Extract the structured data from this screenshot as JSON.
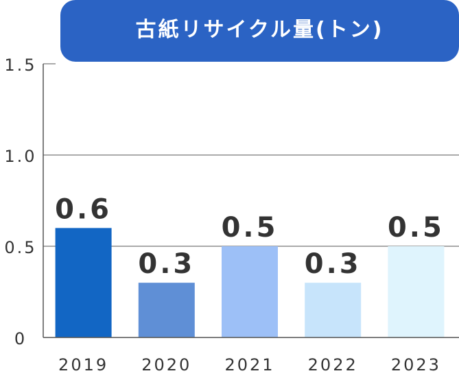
{
  "chart_data": {
    "type": "bar",
    "title": "古紙リサイクル量(トン)",
    "categories": [
      "2019",
      "2020",
      "2021",
      "2022",
      "2023"
    ],
    "values": [
      0.6,
      0.3,
      0.5,
      0.3,
      0.5
    ],
    "value_labels": [
      "0.6",
      "0.3",
      "0.5",
      "0.3",
      "0.5"
    ],
    "ylim": [
      0,
      1.5
    ],
    "yticks": [
      0,
      0.5,
      1.0,
      1.5
    ],
    "ytick_labels": [
      "0",
      "0.5",
      "1.0",
      "1.5"
    ],
    "xlabel": "",
    "ylabel": "",
    "grid": true,
    "bar_colors": [
      "#1266c4",
      "#5f8fd6",
      "#9dc0f7",
      "#c7e4fb",
      "#dff4fd"
    ],
    "title_bg_color": "#2b63c4"
  }
}
